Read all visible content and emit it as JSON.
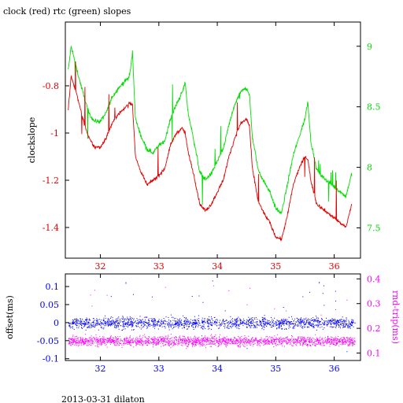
{
  "title": "clock (red) rtc (green) slopes",
  "footer": "2013-03-31 dilaton",
  "colors": {
    "clock": "#e00000",
    "rtc": "#00dd00",
    "offset": "#0000ff",
    "rndtrip": "#ff00ff",
    "axis": "#000000"
  },
  "chart_data": [
    {
      "type": "line",
      "title": "clock (red) rtc (green) slopes",
      "ylabel": "clockslope",
      "y2label": "",
      "xlim": [
        31.4,
        36.45
      ],
      "ylim": [
        -1.53,
        -0.53
      ],
      "y2lim": [
        7.25,
        9.2
      ],
      "x_ticks": [
        "32",
        "33",
        "34",
        "35",
        "36"
      ],
      "x_tick_values": [
        32,
        33,
        34,
        35,
        36
      ],
      "y_ticks": [
        "-0.8",
        "-1",
        "-1.2",
        "-1.4"
      ],
      "y_tick_values": [
        -0.8,
        -1.0,
        -1.2,
        -1.4
      ],
      "y2_ticks": [
        "9",
        "8.5",
        "8",
        "7.5"
      ],
      "y2_tick_values": [
        9.0,
        8.5,
        8.0,
        7.5
      ],
      "series": [
        {
          "name": "clock",
          "axis": "left",
          "x": [
            31.45,
            31.5,
            31.55,
            31.6,
            31.7,
            31.8,
            31.9,
            32.0,
            32.1,
            32.2,
            32.3,
            32.4,
            32.5,
            32.55,
            32.6,
            32.7,
            32.8,
            32.9,
            33.0,
            33.1,
            33.2,
            33.3,
            33.4,
            33.45,
            33.5,
            33.6,
            33.7,
            33.8,
            33.9,
            34.0,
            34.1,
            34.2,
            34.3,
            34.4,
            34.5,
            34.55,
            34.6,
            34.7,
            34.8,
            34.9,
            35.0,
            35.1,
            35.2,
            35.3,
            35.4,
            35.5,
            35.55,
            35.6,
            35.7,
            35.8,
            35.9,
            36.0,
            36.1,
            36.2,
            36.3
          ],
          "y": [
            -0.9,
            -0.76,
            -0.8,
            -0.84,
            -0.94,
            -1.02,
            -1.06,
            -1.06,
            -1.02,
            -0.96,
            -0.92,
            -0.9,
            -0.87,
            -0.88,
            -1.1,
            -1.17,
            -1.22,
            -1.2,
            -1.18,
            -1.15,
            -1.05,
            -1.0,
            -0.98,
            -1.0,
            -1.08,
            -1.18,
            -1.3,
            -1.33,
            -1.3,
            -1.25,
            -1.2,
            -1.1,
            -1.02,
            -0.96,
            -0.94,
            -0.97,
            -1.15,
            -1.29,
            -1.34,
            -1.38,
            -1.44,
            -1.45,
            -1.35,
            -1.22,
            -1.15,
            -1.1,
            -1.11,
            -1.2,
            -1.3,
            -1.32,
            -1.34,
            -1.36,
            -1.38,
            -1.4,
            -1.3
          ]
        },
        {
          "name": "rtc",
          "axis": "right",
          "x": [
            31.45,
            31.5,
            31.55,
            31.6,
            31.7,
            31.8,
            31.9,
            32.0,
            32.1,
            32.2,
            32.3,
            32.4,
            32.5,
            32.55,
            32.6,
            32.7,
            32.8,
            32.9,
            33.0,
            33.1,
            33.2,
            33.3,
            33.4,
            33.45,
            33.5,
            33.6,
            33.7,
            33.8,
            33.9,
            34.0,
            34.1,
            34.2,
            34.3,
            34.4,
            34.5,
            34.55,
            34.6,
            34.7,
            34.8,
            34.9,
            35.0,
            35.1,
            35.2,
            35.3,
            35.4,
            35.5,
            35.55,
            35.6,
            35.7,
            35.8,
            35.9,
            36.0,
            36.1,
            36.2,
            36.3
          ],
          "y": [
            8.8,
            9.0,
            8.9,
            8.8,
            8.62,
            8.45,
            8.38,
            8.38,
            8.45,
            8.58,
            8.65,
            8.7,
            8.75,
            8.95,
            8.4,
            8.25,
            8.15,
            8.12,
            8.18,
            8.22,
            8.4,
            8.52,
            8.62,
            8.7,
            8.45,
            8.22,
            7.96,
            7.9,
            7.95,
            8.05,
            8.15,
            8.35,
            8.52,
            8.62,
            8.66,
            8.6,
            8.25,
            7.98,
            7.88,
            7.8,
            7.66,
            7.62,
            7.86,
            8.1,
            8.25,
            8.4,
            8.55,
            8.22,
            7.98,
            7.92,
            7.88,
            7.84,
            7.8,
            7.76,
            7.95
          ]
        }
      ]
    },
    {
      "type": "scatter",
      "ylabel": "offset(ms)",
      "y2label": "rnd-trip(ms)",
      "xlim": [
        31.4,
        36.45
      ],
      "ylim": [
        -0.105,
        0.135
      ],
      "y2lim": [
        0.07,
        0.42
      ],
      "x_ticks": [
        "32",
        "33",
        "34",
        "35",
        "36"
      ],
      "x_tick_values": [
        32,
        33,
        34,
        35,
        36
      ],
      "y_ticks": [
        "0.1",
        "0.05",
        "0",
        "-0.05",
        "-0.1"
      ],
      "y_tick_values": [
        0.1,
        0.05,
        0.0,
        -0.05,
        -0.1
      ],
      "y2_ticks": [
        "0.4",
        "0.3",
        "0.2",
        "0.1"
      ],
      "y2_tick_values": [
        0.4,
        0.3,
        0.2,
        0.1
      ],
      "series": [
        {
          "name": "offset",
          "axis": "left",
          "center": 0.0,
          "spread": 0.02,
          "x_range": [
            31.45,
            36.35
          ]
        },
        {
          "name": "rnd-trip",
          "axis": "right",
          "center": 0.15,
          "spread": 0.025,
          "x_range": [
            31.45,
            36.35
          ]
        }
      ]
    }
  ]
}
